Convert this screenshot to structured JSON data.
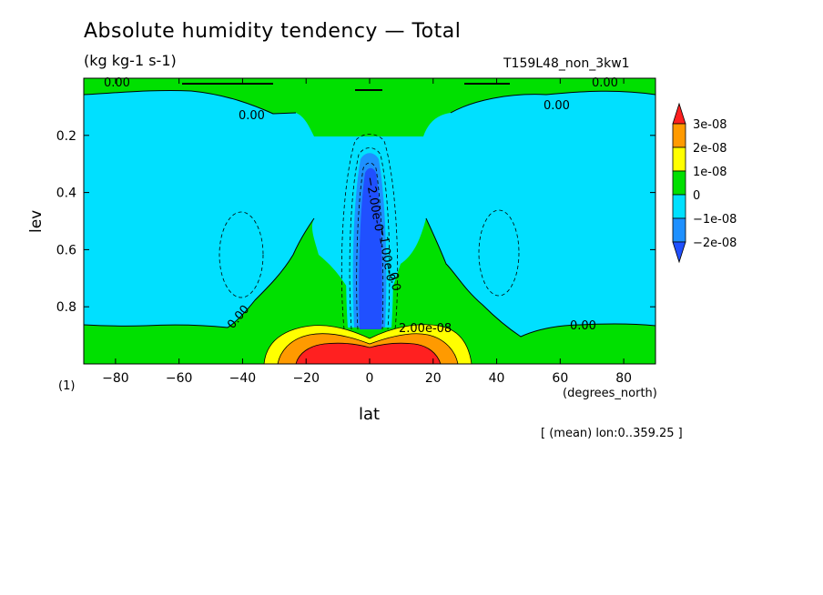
{
  "title": "Absolute humidity tendency — Total",
  "units": "(kg kg-1 s-1)",
  "run_label": "T159L48_non_3kw1",
  "scale_label": "(1)",
  "mean_note": "[ (mean) lon:0..359.25 ]",
  "chart_data": {
    "type": "heatmap",
    "xlabel": "lat",
    "xunits": "(degrees_north)",
    "ylabel": "lev",
    "xlim": [
      -90,
      90
    ],
    "ylim": [
      0,
      1.0
    ],
    "y_inverted": true,
    "x_ticks": [
      -80,
      -60,
      -40,
      -20,
      0,
      20,
      40,
      60,
      80
    ],
    "y_ticks": [
      0.2,
      0.4,
      0.6,
      0.8
    ],
    "colorbar": {
      "levels": [
        "3e-08",
        "2e-08",
        "1e-08",
        "0",
        "−1e-08",
        "−2e-08"
      ],
      "colors": [
        "#ff2020",
        "#ff9a00",
        "#ffff00",
        "#00e000",
        "#00e0ff",
        "#1e90ff",
        "#2050ff"
      ]
    },
    "contour_labels": [
      "0.00",
      "0.00",
      "0.00",
      "0.00",
      "0.00",
      "0.00",
      "−2.00e-0",
      "−1.00e-0",
      "0.0",
      "2.00e-08"
    ]
  }
}
